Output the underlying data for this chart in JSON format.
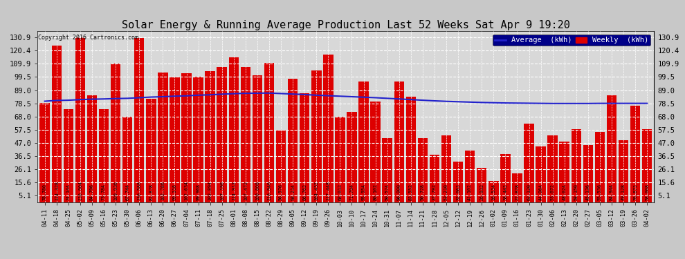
{
  "title": "Solar Energy & Running Average Production Last 52 Weeks Sat Apr 9 19:20",
  "copyright": "Copyright 2016 Cartronics.com",
  "bar_color": "#dd0000",
  "avg_color": "#2222cc",
  "background_color": "#c8c8c8",
  "plot_background": "#d8d8d8",
  "categories": [
    "04-11",
    "04-18",
    "04-25",
    "05-02",
    "05-09",
    "05-16",
    "05-23",
    "05-30",
    "06-06",
    "06-13",
    "06-20",
    "06-27",
    "07-04",
    "07-11",
    "07-18",
    "07-25",
    "08-01",
    "08-08",
    "08-15",
    "08-22",
    "08-29",
    "09-05",
    "09-12",
    "09-19",
    "09-26",
    "10-03",
    "10-10",
    "10-17",
    "10-24",
    "10-31",
    "11-07",
    "11-14",
    "11-21",
    "11-28",
    "12-05",
    "12-12",
    "12-19",
    "12-26",
    "01-02",
    "01-09",
    "01-16",
    "01-23",
    "01-30",
    "02-06",
    "02-13",
    "02-20",
    "02-27",
    "03-05",
    "03-12",
    "03-19",
    "03-26",
    "04-02"
  ],
  "weekly_values": [
    78.78,
    124.328,
    74.144,
    130.904,
    84.796,
    73.784,
    109.936,
    67.744,
    130.588,
    81.878,
    102.786,
    99.318,
    102.634,
    99.968,
    103.894,
    107.19,
    114.912,
    107.472,
    100.808,
    110.94,
    56.976,
    98.214,
    86.762,
    104.432,
    117.448,
    68.012,
    71.794,
    95.954,
    80.102,
    50.574,
    96.0,
    83.552,
    50.728,
    37.792,
    53.21,
    32.062,
    41.102,
    26.932,
    16.534,
    38.442,
    22.878,
    62.12,
    44.064,
    53.072,
    48.024,
    58.15,
    45.136,
    55.536,
    84.944,
    49.128,
    76.872,
    58.008
  ],
  "avg_values": [
    80.2,
    80.8,
    81.0,
    81.5,
    81.8,
    82.0,
    82.3,
    82.5,
    83.0,
    83.5,
    83.8,
    84.2,
    84.5,
    85.0,
    85.3,
    85.8,
    86.2,
    86.5,
    86.6,
    86.7,
    86.3,
    85.9,
    85.5,
    85.0,
    84.6,
    84.2,
    83.8,
    83.4,
    83.0,
    82.5,
    82.0,
    81.5,
    81.0,
    80.5,
    80.1,
    79.8,
    79.5,
    79.2,
    79.0,
    78.8,
    78.7,
    78.6,
    78.5,
    78.4,
    78.4,
    78.4,
    78.4,
    78.5,
    78.5,
    78.5,
    78.5,
    78.5
  ],
  "yticks": [
    5.1,
    15.6,
    26.1,
    36.5,
    47.0,
    57.5,
    68.0,
    78.5,
    89.0,
    99.5,
    109.9,
    120.4,
    130.9
  ],
  "ylim_min": 0,
  "ylim_max": 136,
  "legend_avg_label": "Average  (kWh)",
  "legend_weekly_label": "Weekly  (kWh)"
}
